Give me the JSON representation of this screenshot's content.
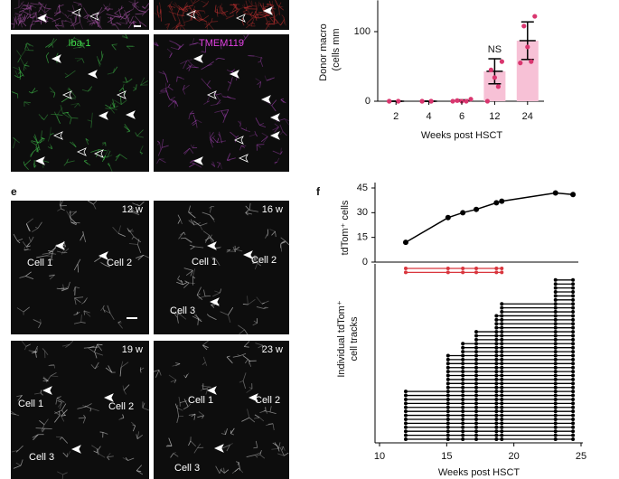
{
  "panel_labels": {
    "e": "e",
    "f": "f"
  },
  "micrographs": {
    "top": [
      {
        "label": "Iba-1"
      },
      {
        "label": "TMEM119"
      }
    ],
    "timelapse": [
      {
        "time": "12 w",
        "cells": [
          "Cell 1",
          "Cell 2"
        ]
      },
      {
        "time": "16 w",
        "cells": [
          "Cell 1",
          "Cell 2",
          "Cell 3"
        ]
      },
      {
        "time": "19 w",
        "cells": [
          "Cell 1",
          "Cell 2",
          "Cell 3"
        ]
      },
      {
        "time": "23 w",
        "cells": [
          "Cell 1",
          "Cell 2",
          "Cell 3"
        ]
      }
    ]
  },
  "chart_data": [
    {
      "type": "bar",
      "categories": [
        2,
        4,
        6,
        12,
        24
      ],
      "values": [
        0,
        0,
        1,
        43,
        87
      ],
      "errors": [
        0,
        0,
        1,
        18,
        27
      ],
      "points": [
        [
          0,
          0,
          0,
          0
        ],
        [
          0,
          0,
          0,
          0
        ],
        [
          0,
          0,
          0,
          1,
          3
        ],
        [
          57,
          45,
          34,
          21,
          0
        ],
        [
          122,
          108,
          78,
          57,
          55
        ]
      ],
      "color": "#f7c1d6",
      "point_color": "#d9366f",
      "ylim": [
        0,
        145
      ],
      "yticks": [
        0,
        100
      ],
      "xlabel": "Weeks post HSCT",
      "ylabel": [
        "Donor macro",
        "(cells mm"
      ],
      "annotations": [
        {
          "text": "NS",
          "x": 12
        }
      ]
    },
    {
      "type": "line",
      "x": [
        11.95,
        15.1,
        16.2,
        17.2,
        18.7,
        19.1,
        23.1,
        24.4
      ],
      "values": [
        12,
        27,
        30,
        32,
        36,
        37,
        42,
        41
      ],
      "color": "#000000",
      "xlim": [
        10,
        25
      ],
      "ylim": [
        0,
        45
      ],
      "yticks": [
        0,
        15,
        30,
        45
      ],
      "ylabel": "tdTom⁺ cells"
    },
    {
      "type": "tracks",
      "xlim": [
        10,
        25
      ],
      "xticks": [
        10,
        15,
        20,
        25
      ],
      "xlabel": "Weeks post HSCT",
      "ylabel": [
        "Individual tdTom⁺",
        "cell tracks"
      ],
      "tracks": [
        {
          "start": 11.95,
          "end": 19.1,
          "count": 1,
          "color": "#d9363e"
        },
        {
          "start": 11.95,
          "end": 19.1,
          "count": 1,
          "color": "#d9363e"
        },
        {
          "start": 23.1,
          "end": 24.4,
          "count": 6,
          "color": "#000000"
        },
        {
          "start": 19.1,
          "end": 24.4,
          "count": 3,
          "color": "#000000"
        },
        {
          "start": 18.7,
          "end": 24.4,
          "count": 4,
          "color": "#000000"
        },
        {
          "start": 17.2,
          "end": 24.4,
          "count": 3,
          "color": "#000000"
        },
        {
          "start": 16.2,
          "end": 24.4,
          "count": 3,
          "color": "#000000"
        },
        {
          "start": 15.1,
          "end": 24.4,
          "count": 9,
          "color": "#000000"
        },
        {
          "start": 11.95,
          "end": 24.4,
          "count": 13,
          "color": "#000000"
        }
      ]
    }
  ]
}
